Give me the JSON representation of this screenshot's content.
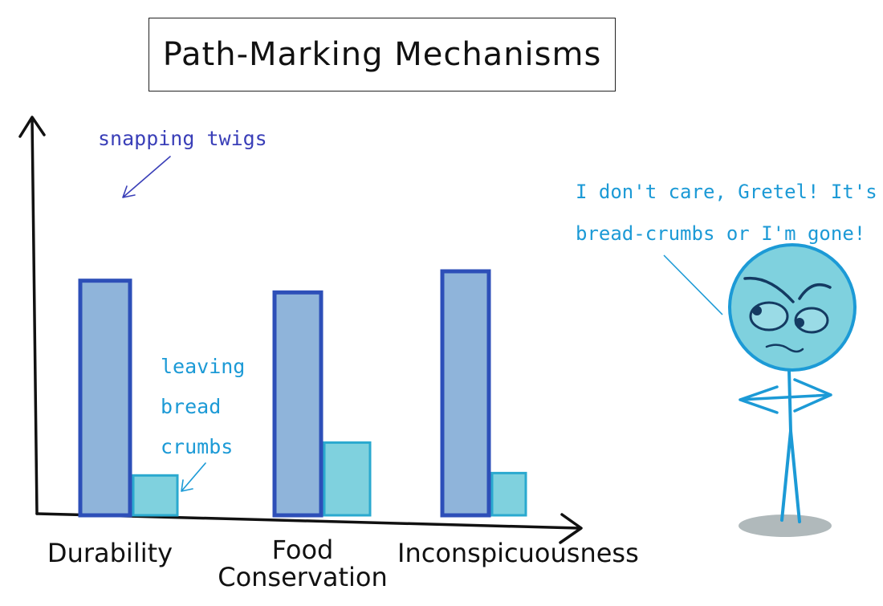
{
  "chart_data": {
    "type": "bar",
    "title": "Path-Marking Mechanisms",
    "categories": [
      "Durability",
      "Food Conservation",
      "Inconspicuousness"
    ],
    "series": [
      {
        "values": [
          100,
          95,
          104
        ],
        "color": "#2d4fb8",
        "fill": "#8fb4da"
      },
      {
        "values": [
          17,
          31,
          18
        ],
        "color": "#2aa9cf",
        "fill": "#7fd1de"
      }
    ],
    "ylim": [
      0,
      130
    ],
    "xlabel": "",
    "ylabel": "",
    "grid": false,
    "annotations": {
      "series1": "snapping twigs",
      "series2_lines": [
        "leaving",
        "bread",
        "crumbs"
      ]
    }
  },
  "speech": {
    "lines": [
      "I don't care, Gretel! It's",
      "bread-crumbs or I'm gone!"
    ]
  }
}
